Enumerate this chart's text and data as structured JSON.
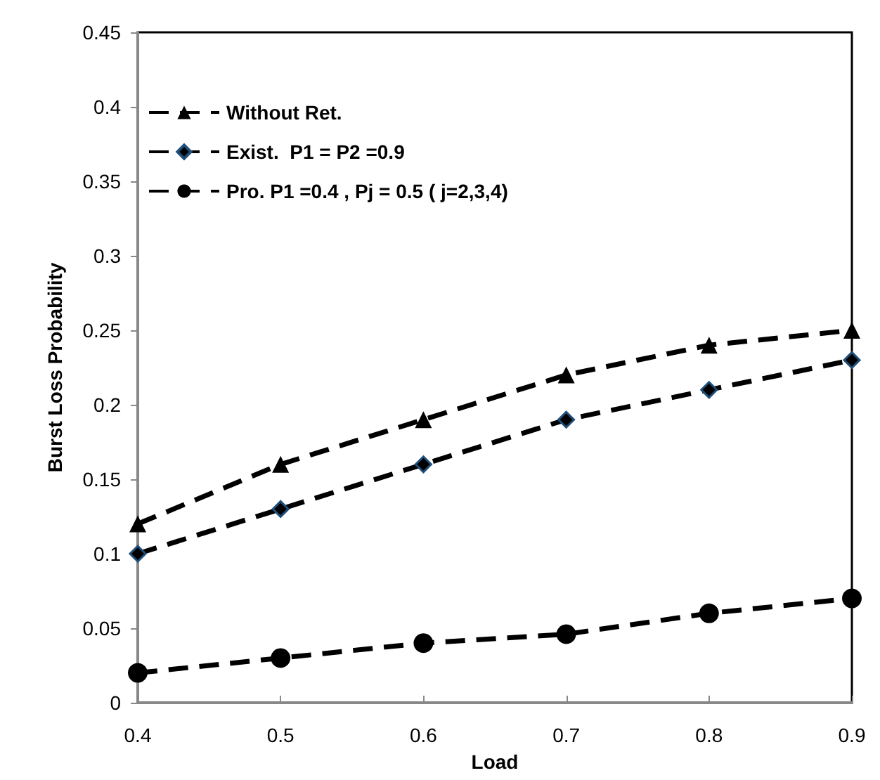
{
  "chart_data": {
    "type": "line",
    "xlabel": "Load",
    "ylabel": "Burst Loss Probability",
    "x": [
      0.4,
      0.5,
      0.6,
      0.7,
      0.8,
      0.9
    ],
    "xlim": [
      0.4,
      0.9
    ],
    "xticks": [
      0.4,
      0.5,
      0.6,
      0.7,
      0.8,
      0.9
    ],
    "ylim": [
      0,
      0.45
    ],
    "yticks": [
      0,
      0.05,
      0.1,
      0.15,
      0.2,
      0.25,
      0.3,
      0.35,
      0.4,
      0.45
    ],
    "grid": false,
    "legend": "top left",
    "series": [
      {
        "name": "Without Ret.",
        "color": "#000000",
        "marker": "triangle",
        "line_style": "dashed",
        "values": [
          0.12,
          0.16,
          0.19,
          0.22,
          0.24,
          0.25
        ]
      },
      {
        "name": "Exist.  P1 = P2 =0.9",
        "color": "#000000",
        "marker": "diamond",
        "line_style": "dashed",
        "values": [
          0.1,
          0.13,
          0.16,
          0.19,
          0.21,
          0.23
        ]
      },
      {
        "name": "Pro. P1 =0.4 , Pj = 0.5 ( j=2,3,4)",
        "color": "#000000",
        "marker": "circle",
        "line_style": "dashed",
        "values": [
          0.02,
          0.03,
          0.04,
          0.046,
          0.06,
          0.07
        ]
      }
    ]
  }
}
